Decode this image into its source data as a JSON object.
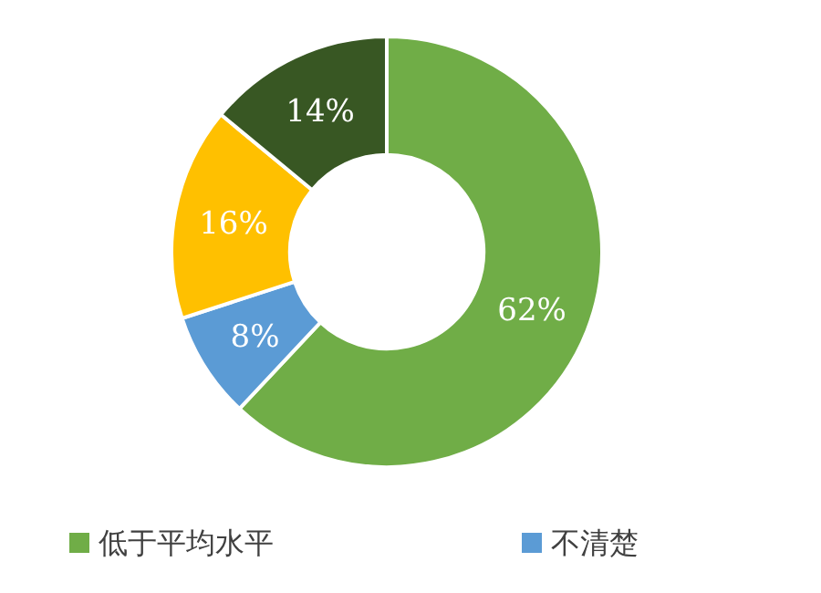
{
  "chart_data": {
    "type": "donut",
    "categories": [
      "低于平均水平",
      "不清楚",
      null,
      null
    ],
    "values": [
      62,
      8,
      16,
      14
    ],
    "colors": [
      "#70ad47",
      "#5b9bd5",
      "#ffc000",
      "#385723"
    ],
    "value_labels": [
      "62%",
      "8%",
      "16%",
      "14%"
    ],
    "legend": "bottom"
  }
}
